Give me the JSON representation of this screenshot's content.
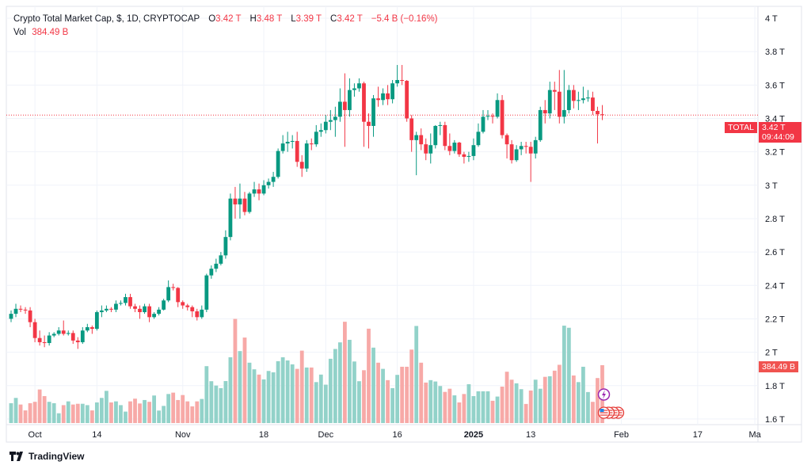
{
  "header": {
    "title": "Crypto Total Market Cap, $, 1D, CRYPTOCAP",
    "open_label": "O",
    "open_value": "3.42 T",
    "high_label": "H",
    "high_value": "3.48 T",
    "low_label": "L",
    "low_value": "3.39 T",
    "close_label": "C",
    "close_value": "3.42 T",
    "change": "−5.4 B (−0.16%)",
    "vol_label": "Vol",
    "vol_value": "384.49 B"
  },
  "price_tag": {
    "symbol": "TOTAL",
    "price": "3.42 T",
    "countdown": "09:44:09"
  },
  "volume_tag": "384.49 B",
  "brand": "TradingView",
  "colors": {
    "up": "#089981",
    "down": "#f23645",
    "up_vol": "#92d2c9",
    "down_vol": "#f7a9a7",
    "grid": "#f0f3fa",
    "event_purple": "#9c27b0"
  },
  "events": [
    {
      "icon": "lightning-icon"
    },
    {
      "icon": "us-flag-icon",
      "count": 4
    }
  ],
  "chart_data": {
    "type": "candlestick",
    "y_unit": "T",
    "ylim": [
      1.6,
      4.0
    ],
    "y_ticks": [
      "4 T",
      "3.8 T",
      "3.6 T",
      "3.4 T",
      "3.2 T",
      "3 T",
      "2.8 T",
      "2.6 T",
      "2.4 T",
      "2.2 T",
      "2 T",
      "1.8 T",
      "1.6 T"
    ],
    "y_tick_values": [
      4.0,
      3.8,
      3.6,
      3.4,
      3.2,
      3.0,
      2.8,
      2.6,
      2.4,
      2.2,
      2.0,
      1.8,
      1.6
    ],
    "x_ticks": [
      {
        "label": "Oct",
        "date": "2024-10-01",
        "bold": false
      },
      {
        "label": "14",
        "date": "2024-10-14",
        "bold": false
      },
      {
        "label": "Nov",
        "date": "2024-11-01",
        "bold": false
      },
      {
        "label": "18",
        "date": "2024-11-18",
        "bold": false
      },
      {
        "label": "Dec",
        "date": "2024-12-01",
        "bold": false
      },
      {
        "label": "16",
        "date": "2024-12-16",
        "bold": false
      },
      {
        "label": "2025",
        "date": "2025-01-01",
        "bold": true
      },
      {
        "label": "13",
        "date": "2025-01-13",
        "bold": false
      },
      {
        "label": "Feb",
        "date": "2025-02-01",
        "bold": false
      },
      {
        "label": "17",
        "date": "2025-02-17",
        "bold": false
      },
      {
        "label": "Ma",
        "date": "2025-03-01",
        "bold": false
      }
    ],
    "last_price": 3.42,
    "grid": true,
    "dates": [
      "2024-09-26",
      "2024-09-27",
      "2024-09-28",
      "2024-09-29",
      "2024-09-30",
      "2024-10-01",
      "2024-10-02",
      "2024-10-03",
      "2024-10-04",
      "2024-10-05",
      "2024-10-06",
      "2024-10-07",
      "2024-10-08",
      "2024-10-09",
      "2024-10-10",
      "2024-10-11",
      "2024-10-12",
      "2024-10-13",
      "2024-10-14",
      "2024-10-15",
      "2024-10-16",
      "2024-10-17",
      "2024-10-18",
      "2024-10-19",
      "2024-10-20",
      "2024-10-21",
      "2024-10-22",
      "2024-10-23",
      "2024-10-24",
      "2024-10-25",
      "2024-10-26",
      "2024-10-27",
      "2024-10-28",
      "2024-10-29",
      "2024-10-30",
      "2024-10-31",
      "2024-11-01",
      "2024-11-02",
      "2024-11-03",
      "2024-11-04",
      "2024-11-05",
      "2024-11-06",
      "2024-11-07",
      "2024-11-08",
      "2024-11-09",
      "2024-11-10",
      "2024-11-11",
      "2024-11-12",
      "2024-11-13",
      "2024-11-14",
      "2024-11-15",
      "2024-11-16",
      "2024-11-17",
      "2024-11-18",
      "2024-11-19",
      "2024-11-20",
      "2024-11-21",
      "2024-11-22",
      "2024-11-23",
      "2024-11-24",
      "2024-11-25",
      "2024-11-26",
      "2024-11-27",
      "2024-11-28",
      "2024-11-29",
      "2024-11-30",
      "2024-12-01",
      "2024-12-02",
      "2024-12-03",
      "2024-12-04",
      "2024-12-05",
      "2024-12-06",
      "2024-12-07",
      "2024-12-08",
      "2024-12-09",
      "2024-12-10",
      "2024-12-11",
      "2024-12-12",
      "2024-12-13",
      "2024-12-14",
      "2024-12-15",
      "2024-12-16",
      "2024-12-17",
      "2024-12-18",
      "2024-12-19",
      "2024-12-20",
      "2024-12-21",
      "2024-12-22",
      "2024-12-23",
      "2024-12-24",
      "2024-12-25",
      "2024-12-26",
      "2024-12-27",
      "2024-12-28",
      "2024-12-29",
      "2024-12-30",
      "2024-12-31",
      "2025-01-01",
      "2025-01-02",
      "2025-01-03",
      "2025-01-04",
      "2025-01-05",
      "2025-01-06",
      "2025-01-07",
      "2025-01-08",
      "2025-01-09",
      "2025-01-10",
      "2025-01-11",
      "2025-01-12",
      "2025-01-13",
      "2025-01-14",
      "2025-01-15",
      "2025-01-16",
      "2025-01-17",
      "2025-01-18",
      "2025-01-19",
      "2025-01-20",
      "2025-01-21",
      "2025-01-22",
      "2025-01-23",
      "2025-01-24",
      "2025-01-25",
      "2025-01-26",
      "2025-01-27",
      "2025-01-28"
    ],
    "open": [
      2.2,
      2.23,
      2.26,
      2.255,
      2.25,
      2.18,
      2.085,
      2.06,
      2.055,
      2.1,
      2.11,
      2.13,
      2.11,
      2.115,
      2.07,
      2.06,
      2.13,
      2.15,
      2.14,
      2.24,
      2.25,
      2.26,
      2.255,
      2.29,
      2.295,
      2.33,
      2.275,
      2.26,
      2.24,
      2.275,
      2.21,
      2.23,
      2.255,
      2.31,
      2.39,
      2.385,
      2.3,
      2.28,
      2.27,
      2.245,
      2.21,
      2.255,
      2.46,
      2.5,
      2.53,
      2.58,
      2.69,
      2.92,
      2.885,
      2.92,
      2.84,
      2.95,
      2.975,
      2.95,
      3.0,
      3.02,
      3.05,
      3.205,
      3.25,
      3.26,
      3.265,
      3.14,
      3.1,
      3.25,
      3.245,
      3.32,
      3.33,
      3.38,
      3.39,
      3.41,
      3.5,
      3.45,
      3.57,
      3.58,
      3.61,
      3.38,
      3.355,
      3.52,
      3.51,
      3.55,
      3.515,
      3.61,
      3.63,
      3.625,
      3.4,
      3.27,
      3.3,
      3.245,
      3.19,
      3.24,
      3.355,
      3.36,
      3.235,
      3.205,
      3.255,
      3.185,
      3.17,
      3.175,
      3.24,
      3.32,
      3.41,
      3.415,
      3.41,
      3.51,
      3.3,
      3.245,
      3.15,
      3.215,
      3.235,
      3.23,
      3.19,
      3.27,
      3.45,
      3.43,
      3.57,
      3.56,
      3.41,
      3.45,
      3.57,
      3.505,
      3.51,
      3.52,
      3.525,
      3.445,
      3.425
    ],
    "high": [
      2.25,
      2.29,
      2.28,
      2.27,
      2.27,
      2.2,
      2.13,
      2.1,
      2.12,
      2.12,
      2.15,
      2.19,
      2.13,
      2.13,
      2.09,
      2.15,
      2.17,
      2.16,
      2.25,
      2.28,
      2.28,
      2.27,
      2.31,
      2.31,
      2.35,
      2.35,
      2.29,
      2.28,
      2.29,
      2.29,
      2.24,
      2.27,
      2.32,
      2.43,
      2.41,
      2.39,
      2.31,
      2.29,
      2.28,
      2.26,
      2.28,
      2.47,
      2.52,
      2.56,
      2.6,
      2.73,
      2.95,
      2.99,
      3.01,
      2.96,
      2.96,
      3.02,
      3.01,
      3.03,
      3.04,
      3.08,
      3.22,
      3.3,
      3.32,
      3.3,
      3.32,
      3.18,
      3.27,
      3.28,
      3.36,
      3.37,
      3.42,
      3.45,
      3.47,
      3.58,
      3.67,
      3.64,
      3.61,
      3.64,
      3.62,
      3.43,
      3.54,
      3.59,
      3.58,
      3.6,
      3.63,
      3.72,
      3.72,
      3.63,
      3.42,
      3.32,
      3.34,
      3.28,
      3.31,
      3.36,
      3.38,
      3.38,
      3.31,
      3.27,
      3.26,
      3.2,
      3.2,
      3.28,
      3.37,
      3.45,
      3.45,
      3.43,
      3.55,
      3.54,
      3.31,
      3.27,
      3.24,
      3.26,
      3.26,
      3.26,
      3.29,
      3.47,
      3.51,
      3.62,
      3.62,
      3.69,
      3.69,
      3.6,
      3.6,
      3.56,
      3.59,
      3.57,
      3.56,
      3.47,
      3.48
    ],
    "low": [
      2.18,
      2.21,
      2.24,
      2.23,
      2.15,
      2.06,
      2.04,
      2.03,
      2.04,
      2.09,
      2.1,
      2.1,
      2.1,
      2.05,
      2.02,
      2.05,
      2.12,
      2.11,
      2.13,
      2.21,
      2.24,
      2.24,
      2.24,
      2.28,
      2.28,
      2.26,
      2.24,
      2.2,
      2.23,
      2.18,
      2.2,
      2.22,
      2.25,
      2.3,
      2.37,
      2.27,
      2.26,
      2.25,
      2.21,
      2.19,
      2.2,
      2.24,
      2.44,
      2.48,
      2.52,
      2.56,
      2.67,
      2.8,
      2.8,
      2.82,
      2.83,
      2.93,
      2.91,
      2.94,
      2.98,
      2.99,
      3.04,
      3.19,
      3.2,
      3.22,
      3.11,
      3.05,
      3.08,
      3.21,
      3.23,
      3.29,
      3.31,
      3.33,
      3.29,
      3.38,
      3.23,
      3.41,
      3.53,
      3.56,
      3.23,
      3.22,
      3.29,
      3.47,
      3.48,
      3.48,
      3.49,
      3.59,
      3.6,
      3.38,
      3.2,
      3.06,
      3.21,
      3.15,
      3.13,
      3.22,
      3.3,
      3.21,
      3.18,
      3.19,
      3.17,
      3.13,
      3.14,
      3.15,
      3.23,
      3.31,
      3.39,
      3.37,
      3.4,
      3.28,
      3.16,
      3.13,
      3.14,
      3.18,
      3.19,
      3.02,
      3.16,
      3.26,
      3.37,
      3.4,
      3.45,
      3.37,
      3.37,
      3.43,
      3.46,
      3.45,
      3.49,
      3.5,
      3.42,
      3.25,
      3.39
    ],
    "close": [
      2.23,
      2.26,
      2.255,
      2.25,
      2.18,
      2.085,
      2.06,
      2.055,
      2.1,
      2.11,
      2.13,
      2.11,
      2.115,
      2.07,
      2.06,
      2.13,
      2.15,
      2.14,
      2.24,
      2.25,
      2.26,
      2.255,
      2.29,
      2.295,
      2.33,
      2.275,
      2.26,
      2.24,
      2.275,
      2.21,
      2.23,
      2.255,
      2.31,
      2.39,
      2.385,
      2.3,
      2.28,
      2.27,
      2.245,
      2.21,
      2.255,
      2.46,
      2.5,
      2.53,
      2.58,
      2.69,
      2.92,
      2.885,
      2.92,
      2.84,
      2.95,
      2.975,
      2.95,
      3.0,
      3.02,
      3.05,
      3.205,
      3.25,
      3.26,
      3.265,
      3.14,
      3.1,
      3.25,
      3.245,
      3.32,
      3.33,
      3.38,
      3.39,
      3.41,
      3.5,
      3.45,
      3.57,
      3.58,
      3.61,
      3.38,
      3.355,
      3.52,
      3.51,
      3.55,
      3.515,
      3.61,
      3.63,
      3.625,
      3.4,
      3.27,
      3.3,
      3.245,
      3.19,
      3.24,
      3.355,
      3.36,
      3.235,
      3.205,
      3.255,
      3.185,
      3.17,
      3.175,
      3.24,
      3.32,
      3.41,
      3.415,
      3.41,
      3.51,
      3.3,
      3.245,
      3.15,
      3.215,
      3.235,
      3.23,
      3.19,
      3.27,
      3.45,
      3.43,
      3.57,
      3.56,
      3.41,
      3.45,
      3.57,
      3.505,
      3.51,
      3.52,
      3.525,
      3.445,
      3.425,
      3.42
    ],
    "volume_unit": "B",
    "volume": [
      132,
      167,
      123,
      84,
      132,
      141,
      223,
      179,
      141,
      132,
      65,
      119,
      144,
      123,
      128,
      128,
      119,
      84,
      137,
      167,
      214,
      137,
      144,
      119,
      76,
      144,
      162,
      130,
      153,
      141,
      183,
      83,
      114,
      193,
      202,
      153,
      186,
      144,
      111,
      144,
      160,
      378,
      278,
      249,
      232,
      279,
      437,
      692,
      478,
      568,
      401,
      357,
      322,
      290,
      346,
      337,
      411,
      437,
      416,
      390,
      360,
      481,
      369,
      369,
      272,
      322,
      255,
      427,
      492,
      536,
      673,
      553,
      409,
      278,
      351,
      627,
      501,
      401,
      360,
      285,
      232,
      320,
      374,
      374,
      488,
      645,
      401,
      269,
      285,
      276,
      246,
      207,
      228,
      184,
      137,
      193,
      258,
      179,
      211,
      211,
      211,
      148,
      176,
      242,
      341,
      288,
      264,
      225,
      127,
      216,
      288,
      228,
      307,
      311,
      348,
      387,
      647,
      633,
      316,
      272,
      374,
      206,
      141,
      299,
      384.49
    ]
  }
}
